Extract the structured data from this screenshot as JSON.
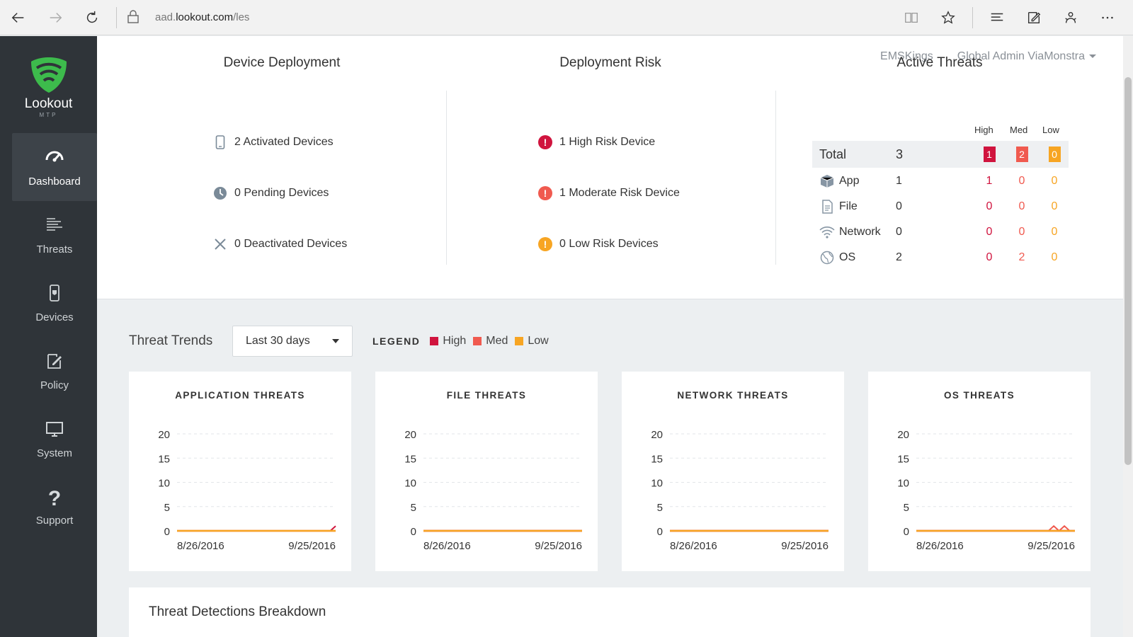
{
  "browser": {
    "url_prefix": "aad.",
    "url_domain": "lookout.com",
    "url_path": "/les"
  },
  "sidebar": {
    "brand": "Lookout",
    "brand_sub": "MTP",
    "items": [
      {
        "label": "Dashboard",
        "active": true
      },
      {
        "label": "Threats"
      },
      {
        "label": "Devices"
      },
      {
        "label": "Policy"
      },
      {
        "label": "System"
      },
      {
        "label": "Support"
      }
    ]
  },
  "header": {
    "org": "EMSKings",
    "user": "Global Admin ViaMonstra"
  },
  "device_deployment": {
    "title": "Device Deployment",
    "activated": "2 Activated Devices",
    "pending": "0 Pending Devices",
    "deactivated": "0 Deactivated Devices"
  },
  "deployment_risk": {
    "title": "Deployment Risk",
    "high": "1 High Risk Device",
    "moderate": "1 Moderate Risk Device",
    "low": "0 Low Risk Devices"
  },
  "active_threats": {
    "title": "Active Threats",
    "columns": [
      "High",
      "Med",
      "Low"
    ],
    "total": {
      "label": "Total",
      "count": "3",
      "high": "1",
      "med": "2",
      "low": "0"
    },
    "rows": [
      {
        "label": "App",
        "count": "1",
        "high": "1",
        "med": "0",
        "low": "0"
      },
      {
        "label": "File",
        "count": "0",
        "high": "0",
        "med": "0",
        "low": "0"
      },
      {
        "label": "Network",
        "count": "0",
        "high": "0",
        "med": "0",
        "low": "0"
      },
      {
        "label": "OS",
        "count": "2",
        "high": "0",
        "med": "2",
        "low": "0"
      }
    ]
  },
  "colors": {
    "high": "#d0143e",
    "med": "#f05a4f",
    "low": "#f7a523",
    "brand": "#3dbb4c"
  },
  "trends": {
    "title": "Threat Trends",
    "range": "Last 30 days",
    "legend_title": "LEGEND",
    "legend": [
      "High",
      "Med",
      "Low"
    ]
  },
  "chart_data": [
    {
      "type": "line",
      "title": "APPLICATION THREATS",
      "yticks": [
        "20",
        "15",
        "10",
        "5",
        "0"
      ],
      "xlabels": [
        "8/26/2016",
        "9/25/2016"
      ],
      "ylim": [
        0,
        20
      ],
      "series": [
        {
          "name": "High",
          "values": [
            0,
            0,
            0,
            0,
            0,
            0,
            0,
            0,
            0,
            0,
            0,
            0,
            0,
            0,
            0,
            0,
            0,
            0,
            0,
            0,
            0,
            0,
            0,
            0,
            0,
            0,
            0,
            0,
            0,
            0,
            1
          ]
        },
        {
          "name": "Med",
          "values": [
            0,
            0,
            0,
            0,
            0,
            0,
            0,
            0,
            0,
            0,
            0,
            0,
            0,
            0,
            0,
            0,
            0,
            0,
            0,
            0,
            0,
            0,
            0,
            0,
            0,
            0,
            0,
            0,
            0,
            0,
            0
          ]
        },
        {
          "name": "Low",
          "values": [
            0,
            0,
            0,
            0,
            0,
            0,
            0,
            0,
            0,
            0,
            0,
            0,
            0,
            0,
            0,
            0,
            0,
            0,
            0,
            0,
            0,
            0,
            0,
            0,
            0,
            0,
            0,
            0,
            0,
            0,
            0
          ]
        }
      ]
    },
    {
      "type": "line",
      "title": "FILE THREATS",
      "yticks": [
        "20",
        "15",
        "10",
        "5",
        "0"
      ],
      "xlabels": [
        "8/26/2016",
        "9/25/2016"
      ],
      "ylim": [
        0,
        20
      ],
      "series": [
        {
          "name": "High",
          "values": [
            0,
            0,
            0,
            0,
            0,
            0,
            0,
            0,
            0,
            0,
            0,
            0,
            0,
            0,
            0,
            0,
            0,
            0,
            0,
            0,
            0,
            0,
            0,
            0,
            0,
            0,
            0,
            0,
            0,
            0,
            0
          ]
        },
        {
          "name": "Med",
          "values": [
            0,
            0,
            0,
            0,
            0,
            0,
            0,
            0,
            0,
            0,
            0,
            0,
            0,
            0,
            0,
            0,
            0,
            0,
            0,
            0,
            0,
            0,
            0,
            0,
            0,
            0,
            0,
            0,
            0,
            0,
            0
          ]
        },
        {
          "name": "Low",
          "values": [
            0,
            0,
            0,
            0,
            0,
            0,
            0,
            0,
            0,
            0,
            0,
            0,
            0,
            0,
            0,
            0,
            0,
            0,
            0,
            0,
            0,
            0,
            0,
            0,
            0,
            0,
            0,
            0,
            0,
            0,
            0
          ]
        }
      ]
    },
    {
      "type": "line",
      "title": "NETWORK THREATS",
      "yticks": [
        "20",
        "15",
        "10",
        "5",
        "0"
      ],
      "xlabels": [
        "8/26/2016",
        "9/25/2016"
      ],
      "ylim": [
        0,
        20
      ],
      "series": [
        {
          "name": "High",
          "values": [
            0,
            0,
            0,
            0,
            0,
            0,
            0,
            0,
            0,
            0,
            0,
            0,
            0,
            0,
            0,
            0,
            0,
            0,
            0,
            0,
            0,
            0,
            0,
            0,
            0,
            0,
            0,
            0,
            0,
            0,
            0
          ]
        },
        {
          "name": "Med",
          "values": [
            0,
            0,
            0,
            0,
            0,
            0,
            0,
            0,
            0,
            0,
            0,
            0,
            0,
            0,
            0,
            0,
            0,
            0,
            0,
            0,
            0,
            0,
            0,
            0,
            0,
            0,
            0,
            0,
            0,
            0,
            0
          ]
        },
        {
          "name": "Low",
          "values": [
            0,
            0,
            0,
            0,
            0,
            0,
            0,
            0,
            0,
            0,
            0,
            0,
            0,
            0,
            0,
            0,
            0,
            0,
            0,
            0,
            0,
            0,
            0,
            0,
            0,
            0,
            0,
            0,
            0,
            0,
            0
          ]
        }
      ]
    },
    {
      "type": "line",
      "title": "OS THREATS",
      "yticks": [
        "20",
        "15",
        "10",
        "5",
        "0"
      ],
      "xlabels": [
        "8/26/2016",
        "9/25/2016"
      ],
      "ylim": [
        0,
        20
      ],
      "series": [
        {
          "name": "High",
          "values": [
            0,
            0,
            0,
            0,
            0,
            0,
            0,
            0,
            0,
            0,
            0,
            0,
            0,
            0,
            0,
            0,
            0,
            0,
            0,
            0,
            0,
            0,
            0,
            0,
            0,
            0,
            0,
            0,
            0,
            0,
            0
          ]
        },
        {
          "name": "Med",
          "values": [
            0,
            0,
            0,
            0,
            0,
            0,
            0,
            0,
            0,
            0,
            0,
            0,
            0,
            0,
            0,
            0,
            0,
            0,
            0,
            0,
            0,
            0,
            0,
            0,
            0,
            0,
            1,
            0,
            1,
            0,
            0
          ]
        },
        {
          "name": "Low",
          "values": [
            0,
            0,
            0,
            0,
            0,
            0,
            0,
            0,
            0,
            0,
            0,
            0,
            0,
            0,
            0,
            0,
            0,
            0,
            0,
            0,
            0,
            0,
            0,
            0,
            0,
            0,
            0,
            0,
            0,
            0,
            0
          ]
        }
      ]
    }
  ],
  "breakdown": {
    "title": "Threat Detections Breakdown"
  }
}
